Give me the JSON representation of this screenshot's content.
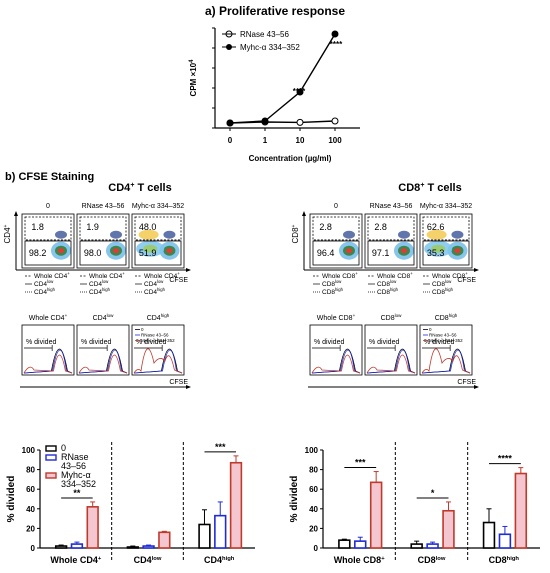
{
  "panel_a": {
    "title": "a) Proliferative response",
    "ylabel": "CPM ×10",
    "ylabel_exp": "4",
    "xlabel": "Concentration (µg/ml)",
    "x_ticks": [
      "0",
      "1",
      "10",
      "100"
    ],
    "legend": [
      {
        "label": "RNase 43–56",
        "marker": "open"
      },
      {
        "label": "Myhc-α 334–352",
        "marker": "filled"
      }
    ],
    "annotations": [
      "****",
      "****"
    ]
  },
  "panel_b": {
    "title": "b) CFSE Staining",
    "cd4_title": "CD4",
    "cd4_title_sup": "+",
    "cd4_title_rest": " T cells",
    "cd8_title": "CD8",
    "cd8_title_sup": "+",
    "cd8_title_rest": " T cells",
    "flow_headers": [
      "0",
      "RNase 43–56",
      "Myhc-α 334–352"
    ],
    "cd4_flow_values": [
      [
        "1.8",
        "98.2"
      ],
      [
        "1.9",
        "98.0"
      ],
      [
        "48.0",
        "51.9"
      ]
    ],
    "cd8_flow_values": [
      [
        "2.8",
        "96.4"
      ],
      [
        "2.8",
        "97.1"
      ],
      [
        "62.6",
        "35.3"
      ]
    ],
    "cd4_axis": "CD4",
    "cd8_axis": "CD8",
    "cfse": "CFSE",
    "cd4_gates": [
      [
        "Whole CD4",
        "+"
      ],
      [
        "CD4",
        "low"
      ],
      [
        "CD4",
        "high"
      ]
    ],
    "cd8_gates": [
      [
        "Whole CD8",
        "+"
      ],
      [
        "CD8",
        "low"
      ],
      [
        "CD8",
        "high"
      ]
    ],
    "cd4_hist_titles": [
      [
        "Whole CD4",
        "+"
      ],
      [
        "CD4",
        "low"
      ],
      [
        "CD4",
        "high"
      ]
    ],
    "cd8_hist_titles": [
      [
        "Whole CD8",
        "+"
      ],
      [
        "CD8",
        "low"
      ],
      [
        "CD8",
        "high"
      ]
    ],
    "hist_legend": [
      "0",
      "RNase 43–56",
      "Myhc-α 334–352"
    ],
    "pct_divided": "% divided"
  },
  "chart_data": [
    {
      "type": "bar",
      "ylabel": "% divided",
      "ylim": [
        0,
        100
      ],
      "y_ticks": [
        "0",
        "20",
        "40",
        "60",
        "80",
        "100"
      ],
      "groups": [
        [
          "Whole CD4",
          "+"
        ],
        [
          "CD4",
          "low"
        ],
        [
          "CD4",
          "high"
        ]
      ],
      "series": [
        {
          "name": "0",
          "values": [
            2,
            1,
            24
          ]
        },
        {
          "name": "RNase 43–56",
          "values": [
            4,
            2,
            33
          ]
        },
        {
          "name": "Myhc-α 334–352",
          "values": [
            42,
            16,
            87
          ]
        }
      ],
      "errors": [
        [
          1,
          1,
          15
        ],
        [
          2,
          1,
          14
        ],
        [
          5,
          1,
          7
        ]
      ],
      "legend": [
        "0",
        "RNase",
        "43–56",
        "Myhc-α",
        "334–352"
      ],
      "significance": [
        {
          "group": 0,
          "label": "**"
        },
        {
          "group": 2,
          "label": "***"
        }
      ]
    },
    {
      "type": "bar",
      "ylabel": "% divided",
      "ylim": [
        0,
        100
      ],
      "y_ticks": [
        "0",
        "20",
        "40",
        "60",
        "80",
        "100"
      ],
      "groups": [
        [
          "Whole CD8",
          "+"
        ],
        [
          "CD8",
          "low"
        ],
        [
          "CD8",
          "high"
        ]
      ],
      "series": [
        {
          "name": "0",
          "values": [
            8,
            4,
            26
          ]
        },
        {
          "name": "RNase 43–56",
          "values": [
            7,
            4,
            14
          ]
        },
        {
          "name": "Myhc-α 334–352",
          "values": [
            67,
            38,
            76
          ]
        }
      ],
      "errors": [
        [
          1,
          3,
          14
        ],
        [
          4,
          2,
          8
        ],
        [
          11,
          9,
          6
        ]
      ],
      "significance": [
        {
          "group": 0,
          "label": "***"
        },
        {
          "group": 1,
          "label": "*"
        },
        {
          "group": 2,
          "label": "****"
        }
      ]
    }
  ],
  "line_data": {
    "x": [
      "0",
      "1",
      "10",
      "100"
    ],
    "series": [
      {
        "name": "RNase 43–56",
        "values": [
          2.5,
          3,
          2.8,
          3.5
        ]
      },
      {
        "name": "Myhc-α 334–352",
        "values": [
          2.5,
          3.5,
          18,
          47
        ]
      }
    ],
    "ylim": [
      0,
      50
    ],
    "y_ticks": [
      "0",
      "10",
      "20",
      "30",
      "40",
      "50"
    ]
  },
  "colors": {
    "black": "#000000",
    "blue": "#1f2bd6",
    "red": "#c0392b",
    "pink": "#f4c6cf"
  }
}
